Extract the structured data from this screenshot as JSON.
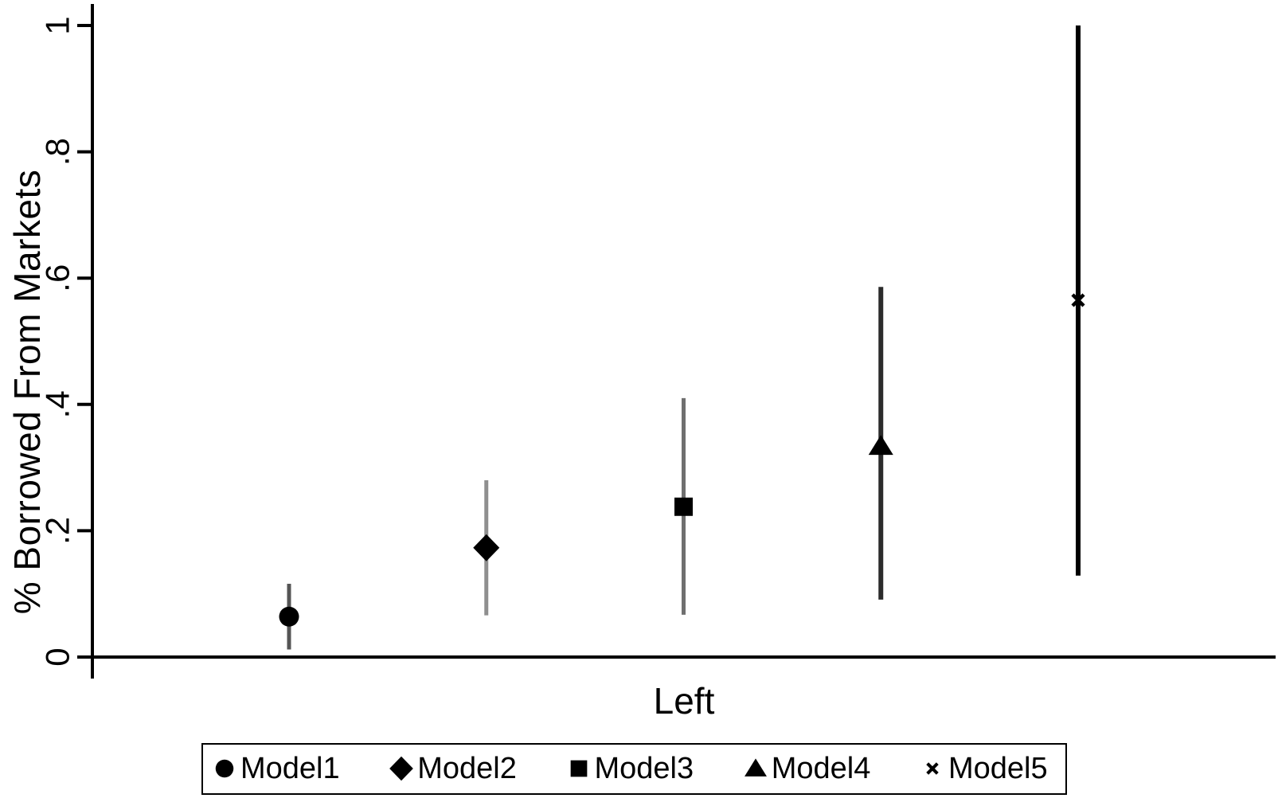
{
  "figure": {
    "background": "#ffffff",
    "axis_color": "#000000"
  },
  "chart_data": {
    "type": "scatter",
    "subtype": "coefficient-estimates-with-confidence-intervals",
    "title": "",
    "xlabel": "Left",
    "ylabel": "% Borrowed From Markets",
    "x_categories": [
      "Left"
    ],
    "ylim": [
      0,
      1
    ],
    "grid": false,
    "legend_position": "bottom",
    "yticks": [
      {
        "value": 0.0,
        "label": "0"
      },
      {
        "value": 0.2,
        "label": ".2"
      },
      {
        "value": 0.4,
        "label": ".4"
      },
      {
        "value": 0.6,
        "label": ".6"
      },
      {
        "value": 0.8,
        "label": ".8"
      },
      {
        "value": 1.0,
        "label": "1"
      }
    ],
    "series": [
      {
        "name": "Model1",
        "marker": "circle",
        "estimate": 0.064,
        "ci_low": 0.012,
        "ci_high": 0.116,
        "marker_color": "#000000",
        "line_color": "#555555",
        "line_width": 5
      },
      {
        "name": "Model2",
        "marker": "diamond",
        "estimate": 0.173,
        "ci_low": 0.066,
        "ci_high": 0.28,
        "marker_color": "#000000",
        "line_color": "#8f8f8f",
        "line_width": 5
      },
      {
        "name": "Model3",
        "marker": "square",
        "estimate": 0.238,
        "ci_low": 0.067,
        "ci_high": 0.41,
        "marker_color": "#000000",
        "line_color": "#6f6f6f",
        "line_width": 5
      },
      {
        "name": "Model4",
        "marker": "triangle",
        "estimate": 0.334,
        "ci_low": 0.091,
        "ci_high": 0.586,
        "marker_color": "#000000",
        "line_color": "#2b2b2b",
        "line_width": 6
      },
      {
        "name": "Model5",
        "marker": "x",
        "estimate": 0.565,
        "ci_low": 0.129,
        "ci_high": 1.0,
        "marker_color": "#000000",
        "line_color": "#000000",
        "line_width": 6
      }
    ]
  }
}
